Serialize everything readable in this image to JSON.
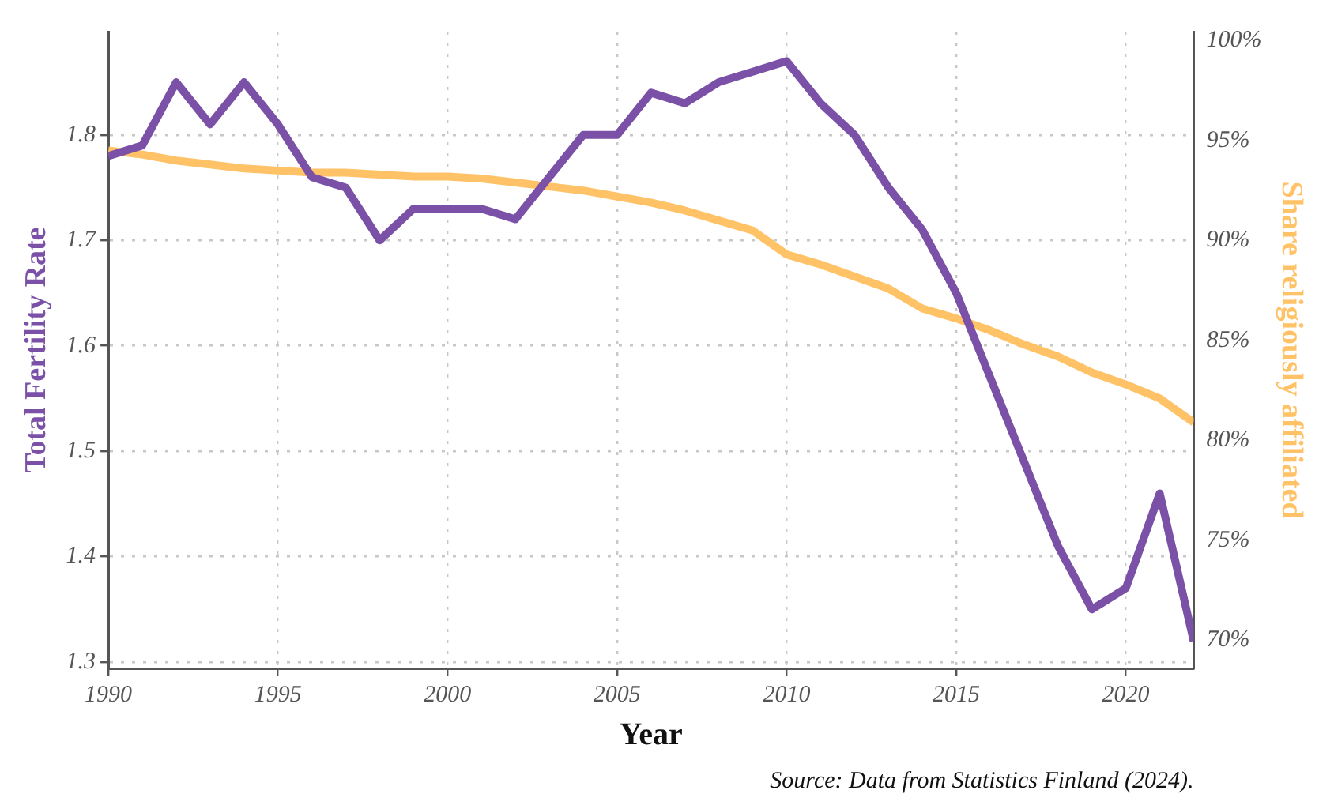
{
  "chart_data": {
    "type": "line",
    "x": [
      1990,
      1991,
      1992,
      1993,
      1994,
      1995,
      1996,
      1997,
      1998,
      1999,
      2000,
      2001,
      2002,
      2003,
      2004,
      2005,
      2006,
      2007,
      2008,
      2009,
      2010,
      2011,
      2012,
      2013,
      2014,
      2015,
      2016,
      2017,
      2018,
      2019,
      2020,
      2021,
      2022
    ],
    "series": [
      {
        "color": "#7b50a7",
        "values": [
          1.78,
          1.79,
          1.85,
          1.81,
          1.85,
          1.81,
          1.76,
          1.75,
          1.7,
          1.73,
          1.73,
          1.73,
          1.72,
          1.76,
          1.8,
          1.8,
          1.84,
          1.83,
          1.85,
          1.86,
          1.87,
          1.83,
          1.8,
          1.75,
          1.71,
          1.65,
          1.57,
          1.49,
          1.41,
          1.35,
          1.37,
          1.46,
          1.32
        ]
      },
      {
        "color": "#ffc266",
        "axis": "y2",
        "values": [
          94.5,
          94.3,
          94.0,
          93.8,
          93.6,
          93.5,
          93.4,
          93.4,
          93.3,
          93.2,
          93.2,
          93.1,
          92.9,
          92.7,
          92.5,
          92.2,
          91.9,
          91.5,
          91.0,
          90.5,
          89.3,
          88.8,
          88.2,
          87.6,
          86.6,
          86.1,
          85.5,
          84.8,
          84.2,
          83.4,
          82.8,
          82.1,
          80.9
        ]
      }
    ],
    "xlabel": "Year",
    "ylabel": "Total Fertility Rate",
    "y2label": "Share religiously affiliated",
    "xlim": [
      1990,
      2022
    ],
    "xticks": [
      1990,
      1995,
      2000,
      2005,
      2010,
      2015,
      2020
    ],
    "ylim": [
      1.294,
      1.898
    ],
    "yticks": [
      1.3,
      1.4,
      1.5,
      1.6,
      1.7,
      1.8
    ],
    "y2lim": [
      68.6,
      100.45
    ],
    "y2ticks": [
      {
        "value": 70,
        "label": "70%"
      },
      {
        "value": 75,
        "label": "75%"
      },
      {
        "value": 80,
        "label": "80%"
      },
      {
        "value": 85,
        "label": "85%"
      },
      {
        "value": 90,
        "label": "90%"
      },
      {
        "value": 95,
        "label": "95%"
      },
      {
        "value": 100,
        "label": "100%"
      }
    ],
    "grid": true,
    "legend": false,
    "marker": "none",
    "line_style": "solid",
    "annotations": [
      "Source: Data from Statistics Finland (2024)."
    ]
  }
}
